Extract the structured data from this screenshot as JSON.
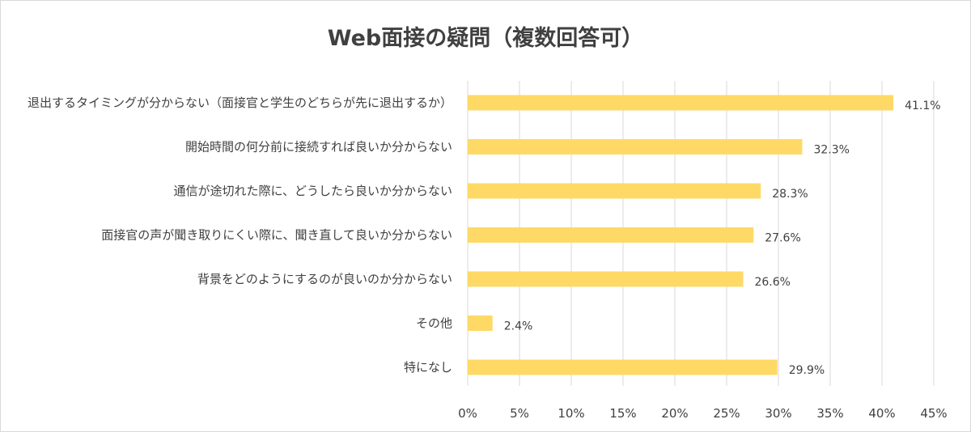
{
  "chart_data": {
    "type": "bar",
    "orientation": "horizontal",
    "title": "Web面接の疑問（複数回答可）",
    "categories": [
      "退出するタイミングが分からない（面接官と学生のどちらが先に退出するか）",
      "開始時間の何分前に接続すれば良いか分からない",
      "通信が途切れた際に、どうしたら良いか分からない",
      "面接官の声が聞き取りにくい際に、聞き直して良いか分からない",
      "背景をどのようにするのが良いのか分からない",
      "その他",
      "特になし"
    ],
    "values": [
      41.1,
      32.3,
      28.3,
      27.6,
      26.6,
      2.4,
      29.9
    ],
    "value_labels": [
      "41.1%",
      "32.3%",
      "28.3%",
      "27.6%",
      "26.6%",
      "2.4%",
      "29.9%"
    ],
    "xlim": [
      0,
      45
    ],
    "x_ticks": [
      "0%",
      "5%",
      "10%",
      "15%",
      "20%",
      "25%",
      "30%",
      "35%",
      "40%",
      "45%"
    ],
    "bar_color": "#ffd966",
    "grid": true,
    "legend": false
  }
}
